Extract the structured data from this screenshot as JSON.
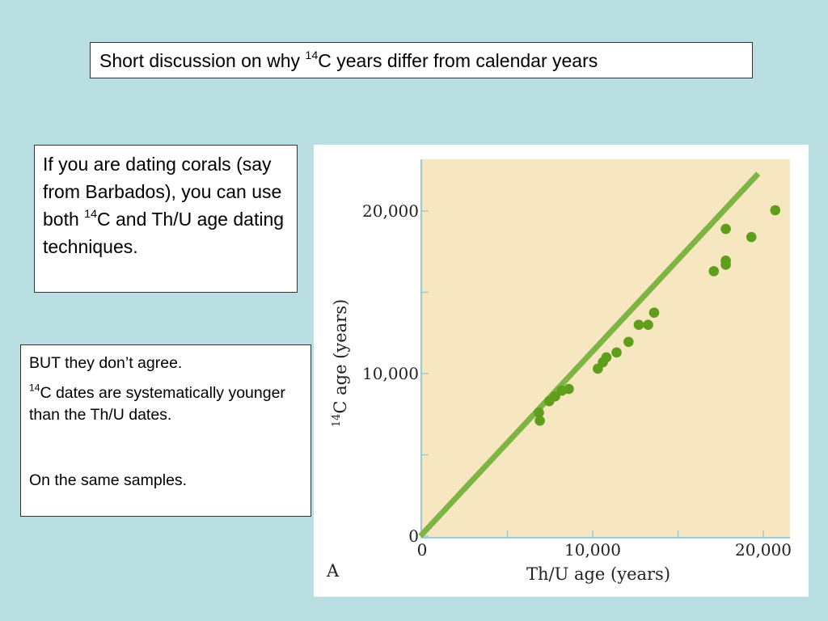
{
  "title_box": {
    "before": "Short discussion on why ",
    "sup": "14",
    "after": "C years differ from calendar years"
  },
  "corals_box": {
    "before": "If you are dating corals (say from Barbados), you can use both ",
    "sup": "14",
    "after": "C and Th/U age dating techniques."
  },
  "agree_box": {
    "line1": "BUT they don’t agree.",
    "line2_sup": "14",
    "line2": "C dates are systematically younger than the Th/U dates.",
    "line3": "On the same samples."
  },
  "chart_data": {
    "type": "scatter",
    "panel_label": "A",
    "xlabel": "Th/U age (years)",
    "ylabel_sup": "14",
    "ylabel": "C age (years)",
    "xlim": [
      0,
      21500
    ],
    "ylim": [
      0,
      20000
    ],
    "x_tick_labels": [
      "0",
      "10,000",
      "20,000"
    ],
    "x_ticks": [
      0,
      10000,
      20000
    ],
    "x_minor_ticks": [
      5000,
      15000
    ],
    "y_tick_labels": [
      "0",
      "10,000",
      "20,000"
    ],
    "y_ticks": [
      0,
      10000,
      20000
    ],
    "y_minor_ticks": [
      5000,
      15000
    ],
    "colors": {
      "plot_background": "#f6e7c1",
      "line": "#7db443",
      "points": "#5f9e1a",
      "axis": "#9fc8d4"
    },
    "reference_line": {
      "x": [
        -100,
        19700
      ],
      "y": [
        0,
        22300
      ]
    },
    "points": [
      {
        "x": 6850,
        "y": 7600
      },
      {
        "x": 6900,
        "y": 7100
      },
      {
        "x": 7450,
        "y": 8300
      },
      {
        "x": 7800,
        "y": 8600
      },
      {
        "x": 8200,
        "y": 8950
      },
      {
        "x": 8600,
        "y": 9050
      },
      {
        "x": 10300,
        "y": 10300
      },
      {
        "x": 10600,
        "y": 10700
      },
      {
        "x": 10800,
        "y": 11000
      },
      {
        "x": 11400,
        "y": 11300
      },
      {
        "x": 12100,
        "y": 11950
      },
      {
        "x": 12700,
        "y": 13000
      },
      {
        "x": 13250,
        "y": 13000
      },
      {
        "x": 13600,
        "y": 13750
      },
      {
        "x": 17100,
        "y": 16300
      },
      {
        "x": 17800,
        "y": 16950
      },
      {
        "x": 17800,
        "y": 16700
      },
      {
        "x": 17800,
        "y": 18900
      },
      {
        "x": 19300,
        "y": 18400
      },
      {
        "x": 20700,
        "y": 20050
      }
    ]
  }
}
